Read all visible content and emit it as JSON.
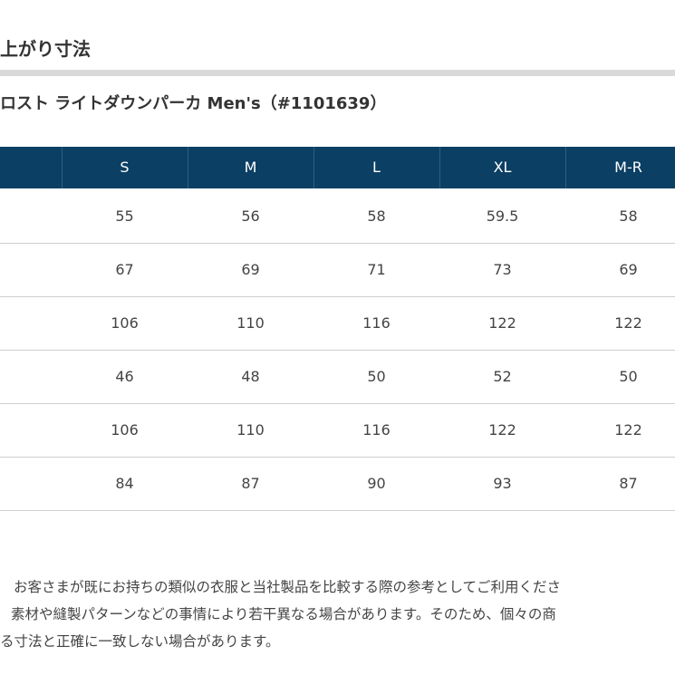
{
  "header": {
    "title": "上がり寸法",
    "subtitle": "ロスト ライトダウンパーカ Men's（#1101639）"
  },
  "table": {
    "columns": [
      "S",
      "M",
      "L",
      "XL",
      "M-R"
    ],
    "rows": [
      [
        55,
        56,
        58,
        59.5,
        58
      ],
      [
        67,
        69,
        71,
        73,
        69
      ],
      [
        106,
        110,
        116,
        122,
        122
      ],
      [
        46,
        48,
        50,
        52,
        50
      ],
      [
        106,
        110,
        116,
        122,
        122
      ],
      [
        84,
        87,
        90,
        93,
        87
      ]
    ]
  },
  "notes": [
    "お客さまが既にお持ちの類似の衣服と当社製品を比較する際の参考としてご利用くださ",
    "素材や縫製パターンなどの事情により若干異なる場合があります。そのため、個々の商",
    "る寸法と正確に一致しない場合があります。"
  ]
}
